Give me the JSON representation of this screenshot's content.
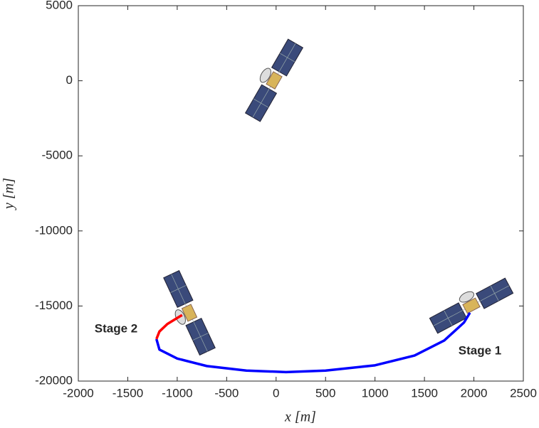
{
  "chart_data": {
    "type": "line",
    "xlabel": "x [m]",
    "ylabel": "y [m]",
    "xlim": [
      -2000,
      2500
    ],
    "xticks": [
      -2000,
      -1500,
      -1000,
      -500,
      0,
      500,
      1000,
      1500,
      2000,
      2500
    ],
    "ylim": [
      -20000,
      5000
    ],
    "yticks": [
      -20000,
      -15000,
      -10000,
      -5000,
      0,
      5000
    ],
    "grid": false,
    "series": [
      {
        "name": "Stage 1",
        "color": "#0000ff",
        "x": [
          1960,
          1900,
          1700,
          1400,
          1000,
          500,
          100,
          -300,
          -700,
          -1000,
          -1180,
          -1210
        ],
        "values": [
          -15450,
          -16100,
          -17300,
          -18300,
          -18950,
          -19300,
          -19400,
          -19300,
          -19000,
          -18500,
          -17900,
          -17200
        ]
      },
      {
        "name": "Stage 2",
        "color": "#ff0000",
        "x": [
          -1210,
          -1180,
          -1100,
          -1000,
          -950
        ],
        "values": [
          -17200,
          -16700,
          -16200,
          -15800,
          -15600
        ]
      }
    ]
  }
}
